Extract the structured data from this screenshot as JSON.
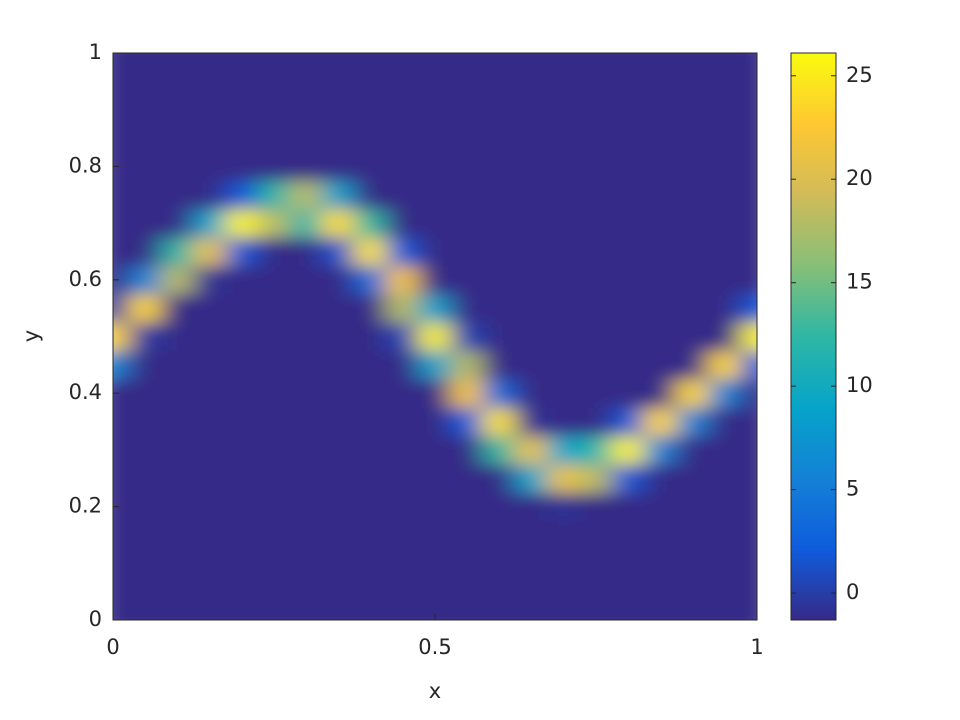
{
  "chart_data": {
    "type": "heatmap",
    "colormap": "parula",
    "x_label": "x",
    "y_label": "y",
    "x": [
      0,
      0.05,
      0.1,
      0.15,
      0.2,
      0.25,
      0.3,
      0.35,
      0.4,
      0.45,
      0.5,
      0.55,
      0.6,
      0.65,
      0.7,
      0.75,
      0.8,
      0.85,
      0.9,
      0.95,
      1
    ],
    "y": [
      0,
      0.05,
      0.1,
      0.15,
      0.2,
      0.25,
      0.3,
      0.35,
      0.4,
      0.45,
      0.5,
      0.55,
      0.6,
      0.65,
      0.7,
      0.75,
      0.8,
      0.85,
      0.9,
      0.95,
      1
    ],
    "z": [
      [
        -1.3,
        -1.3,
        -1.3,
        -1.3,
        -1.3,
        -1.3,
        -1.3,
        -1.3,
        -1.3,
        5.7,
        23.6,
        -0.2,
        -1.3,
        -1.3,
        -1.3,
        -1.3,
        -1.3,
        -1.3,
        -1.3,
        -1.3,
        -1.3
      ],
      [
        -1.3,
        -1.3,
        -1.3,
        -1.3,
        -1.3,
        -1.3,
        -1.3,
        -1.3,
        -1.3,
        -1.3,
        -0.2,
        23.6,
        5.7,
        -1.3,
        -1.3,
        -1.3,
        -1.3,
        -1.3,
        -1.3,
        -1.3,
        -1.3
      ],
      [
        -1.3,
        -1.3,
        -1.3,
        -1.3,
        -1.3,
        -1.3,
        -1.3,
        -1.3,
        -1.3,
        -1.3,
        -1.3,
        -1.3,
        18.2,
        12,
        -1.3,
        -1.3,
        -1.3,
        -1.3,
        -1.3,
        -1.3,
        -1.3
      ],
      [
        -1.3,
        -1.3,
        -1.3,
        -1.3,
        -1.3,
        -1.3,
        -1.3,
        -1.3,
        -1.3,
        -1.3,
        -1.3,
        -1.3,
        -0.8,
        21,
        9,
        -1.3,
        -1.3,
        -1.3,
        -1.3,
        -1.3,
        -1.3
      ],
      [
        -1.3,
        -1.3,
        -1.3,
        -1.3,
        -1.3,
        -1.3,
        -1.3,
        -1.3,
        -1.3,
        -1.3,
        -1.3,
        -1.3,
        -1.3,
        1.9,
        25.5,
        1.9,
        -1.3,
        -1.3,
        -1.3,
        -1.3,
        -1.3
      ],
      [
        -1.3,
        -1.3,
        -1.3,
        -1.3,
        -1.3,
        -1.3,
        -1.3,
        -1.3,
        -1.3,
        -1.3,
        -1.3,
        -1.3,
        -1.3,
        -1.3,
        18.2,
        12,
        -1.3,
        -1.3,
        -1.3,
        -1.3,
        -1.3
      ],
      [
        -1.3,
        -1.3,
        -1.3,
        -1.3,
        -1.3,
        -1.3,
        -1.3,
        -1.3,
        -1.3,
        -1.3,
        -1.3,
        -1.3,
        -1.3,
        -1.3,
        12,
        18.2,
        -1.3,
        -1.3,
        -1.3,
        -1.3,
        -1.3
      ],
      [
        -1.3,
        -1.3,
        -1.3,
        -1.3,
        -1.3,
        -1.3,
        -1.3,
        -1.3,
        -1.3,
        -1.3,
        -1.3,
        -1.3,
        -1.3,
        1.5,
        24,
        8.6,
        -1.3,
        -1.3,
        -1.3,
        -1.3,
        -1.3
      ],
      [
        -1.3,
        -1.3,
        -1.3,
        -1.3,
        -1.3,
        -1.3,
        -1.3,
        -1.3,
        -1.3,
        -1.3,
        -1.3,
        -1.3,
        3.5,
        24.5,
        12.5,
        -1.3,
        -1.3,
        -1.3,
        -1.3,
        -1.3,
        -1.3
      ],
      [
        -1.3,
        -1.3,
        -1.3,
        -1.3,
        -1.3,
        -1.3,
        -1.3,
        -1.3,
        -1.3,
        -1.3,
        0.5,
        18,
        22,
        2,
        -1.3,
        -1.3,
        -1.3,
        -1.3,
        -1.3,
        -1.3,
        -1.3
      ],
      [
        -1.3,
        -1.3,
        -1.3,
        -1.3,
        -1.3,
        -1.3,
        -1.3,
        -1.3,
        -1.3,
        8.6,
        25.5,
        8.6,
        -1.3,
        -1.3,
        -1.3,
        -1.3,
        -1.3,
        -1.3,
        -1.3,
        -1.3,
        -1.3
      ],
      [
        -1.3,
        -1.3,
        -1.3,
        -1.3,
        -1.3,
        -1.3,
        -1.3,
        2,
        22,
        18,
        0.5,
        -1.3,
        -1.3,
        -1.3,
        -1.3,
        -1.3,
        -1.3,
        -1.3,
        -1.3,
        -1.3,
        -1.3
      ],
      [
        -1.3,
        -1.3,
        -1.3,
        -1.3,
        -1.3,
        -1.3,
        12.5,
        24.5,
        3.5,
        -1.3,
        -1.3,
        -1.3,
        -1.3,
        -1.3,
        -1.3,
        -1.3,
        -1.3,
        -1.3,
        -1.3,
        -1.3,
        -1.3
      ],
      [
        -1.3,
        -1.3,
        -1.3,
        -1.3,
        -1.3,
        9,
        21,
        -0.8,
        -1.3,
        -1.3,
        -1.3,
        -1.3,
        -1.3,
        -1.3,
        -1.3,
        -1.3,
        -1.3,
        -1.3,
        -1.3,
        -1.3,
        -1.3
      ],
      [
        -1.3,
        -1.3,
        -1.3,
        -1.3,
        -0.8,
        21,
        9,
        -1.3,
        -1.3,
        -1.3,
        -1.3,
        -1.3,
        -1.3,
        -1.3,
        -1.3,
        -1.3,
        -1.3,
        -1.3,
        -1.3,
        -1.3,
        -1.3
      ],
      [
        -1.3,
        -1.3,
        -1.3,
        -1.3,
        -1.3,
        18.2,
        12,
        -1.3,
        -1.3,
        -1.3,
        -1.3,
        -1.3,
        -1.3,
        -1.3,
        -1.3,
        -1.3,
        -1.3,
        -1.3,
        -1.3,
        -1.3,
        -1.3
      ],
      [
        -1.3,
        -1.3,
        -1.3,
        -1.3,
        -1.3,
        1.9,
        25.5,
        1.9,
        -1.3,
        -1.3,
        -1.3,
        -1.3,
        -1.3,
        -1.3,
        -1.3,
        -1.3,
        -1.3,
        -1.3,
        -1.3,
        -1.3,
        -1.3
      ],
      [
        -1.3,
        -1.3,
        -1.3,
        -1.3,
        -1.3,
        -1.3,
        5.7,
        23.6,
        -1.3,
        -1.3,
        -1.3,
        -1.3,
        -1.3,
        -1.3,
        -1.3,
        -1.3,
        -1.3,
        -1.3,
        -1.3,
        -1.3,
        -1.3
      ],
      [
        -1.3,
        -1.3,
        -1.3,
        -1.3,
        -1.3,
        -1.3,
        -1.3,
        5.7,
        23.6,
        -1.3,
        -1.3,
        -1.3,
        -1.3,
        -1.3,
        -1.3,
        -1.3,
        -1.3,
        -1.3,
        -1.3,
        -1.3,
        -1.3
      ],
      [
        -1.3,
        -1.3,
        -1.3,
        -1.3,
        -1.3,
        -1.3,
        -1.3,
        -1.3,
        5.7,
        23.6,
        -1.3,
        -1.3,
        -1.3,
        -1.3,
        -1.3,
        -1.3,
        -1.3,
        -1.3,
        -1.3,
        -1.3,
        -1.3
      ],
      [
        -1.3,
        -1.3,
        -1.3,
        -1.3,
        -1.3,
        -1.3,
        -1.3,
        -1.3,
        -1.3,
        1.9,
        25.5,
        1.9,
        -1.3,
        -1.3,
        -1.3,
        -1.3,
        -1.3,
        -1.3,
        -1.3,
        -1.3,
        -1.3
      ]
    ],
    "xlim": [
      0,
      1
    ],
    "xticks": [
      0,
      0.5,
      1
    ],
    "ylim": [
      0,
      1
    ],
    "yticks": [
      0,
      0.2,
      0.4,
      0.6,
      0.8,
      1
    ],
    "clim": [
      -1.3,
      26.1
    ],
    "cticks": [
      0,
      5,
      10,
      15,
      20,
      25
    ]
  }
}
